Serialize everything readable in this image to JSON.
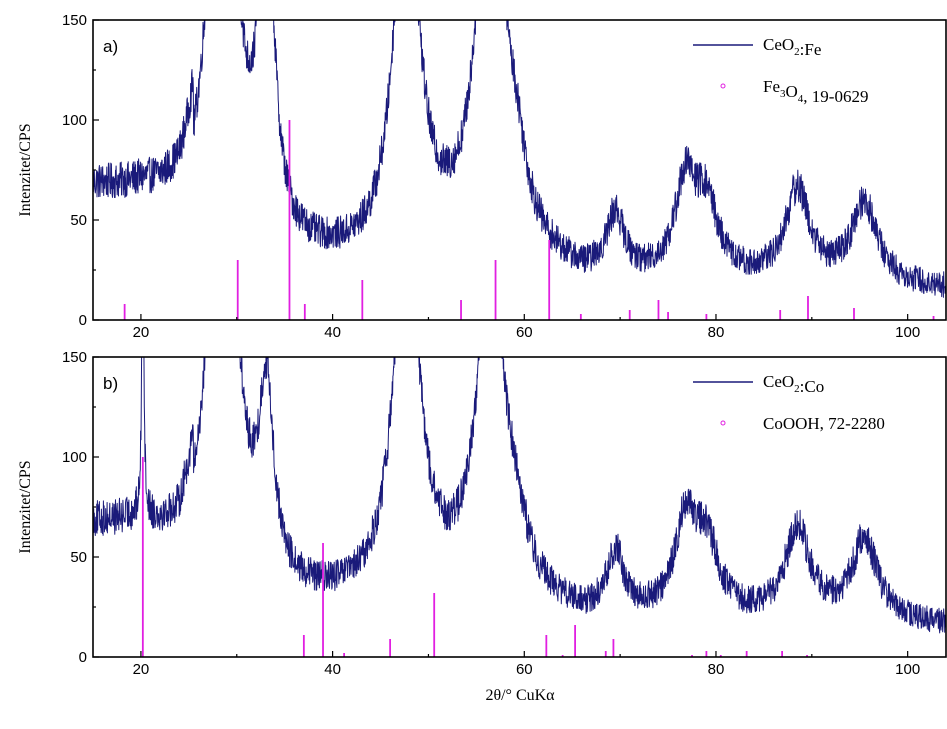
{
  "colors": {
    "pattern": "#1a1a7a",
    "reference": "#e11fe1",
    "axis": "#000000"
  },
  "x_axis_title": "2θ/° CuKα",
  "chart_data": [
    {
      "type": "line",
      "panel_label": "a)",
      "ylabel": "Intenzitet/CPS",
      "xlim": [
        15,
        104
      ],
      "ylim": [
        0,
        150
      ],
      "x_ticks": [
        20,
        40,
        60,
        80,
        100
      ],
      "y_ticks": [
        0,
        50,
        100,
        150
      ],
      "grid": false,
      "legend_position": "top-right",
      "series": [
        {
          "name": "CeO2:Fe",
          "legend": {
            "main": "CeO",
            "sub": "2",
            "rest": ":Fe"
          },
          "kind": "pattern",
          "baseline": [
            [
              15,
              65
            ],
            [
              20,
              62
            ],
            [
              24,
              55
            ],
            [
              25.5,
              65
            ]
          ],
          "peaks": [
            [
              28.5,
              300,
              1.4
            ],
            [
              33.1,
              170,
              0.9
            ],
            [
              47.7,
              200,
              1.5
            ],
            [
              56.5,
              220,
              1.6
            ],
            [
              59.2,
              25,
              1.2
            ],
            [
              69.5,
              30,
              1.1
            ],
            [
              76.8,
              45,
              1.3
            ],
            [
              79,
              35,
              1.5
            ],
            [
              88.5,
              45,
              1.5
            ],
            [
              95.5,
              40,
              1.6
            ]
          ],
          "background": [
            [
              25.5,
              40
            ],
            [
              36,
              28
            ],
            [
              44,
              25
            ],
            [
              52,
              30
            ],
            [
              60,
              28
            ],
            [
              66,
              18
            ],
            [
              70,
              18
            ],
            [
              74,
              18
            ],
            [
              84,
              18
            ],
            [
              92,
              18
            ],
            [
              104,
              15
            ]
          ],
          "noise": 9
        },
        {
          "name": "Fe3O4, 19-0629",
          "legend": {
            "main": "Fe",
            "sub": "3",
            "mid": "O",
            "sub2": "4",
            "rest": ", 19-0629"
          },
          "kind": "reference",
          "x": [
            18.3,
            30.1,
            35.5,
            37.1,
            43.1,
            53.4,
            57.0,
            62.6,
            65.9,
            71.0,
            74.0,
            75.0,
            79.0,
            86.7,
            89.6,
            94.4,
            102.7
          ],
          "y": [
            8,
            30,
            100,
            8,
            20,
            10,
            30,
            40,
            3,
            5,
            10,
            4,
            3,
            5,
            12,
            6,
            2
          ]
        }
      ]
    },
    {
      "type": "line",
      "panel_label": "b)",
      "ylabel": "Intenzitet/CPS",
      "xlim": [
        15,
        104
      ],
      "ylim": [
        0,
        150
      ],
      "x_ticks": [
        20,
        40,
        60,
        80,
        100
      ],
      "y_ticks": [
        0,
        50,
        100,
        150
      ],
      "grid": false,
      "legend_position": "top-right",
      "series": [
        {
          "name": "CeO2:Co",
          "legend": {
            "main": "CeO",
            "sub": "2",
            "rest": ":Co"
          },
          "kind": "pattern",
          "baseline": [
            [
              15,
              65
            ],
            [
              20,
              63
            ],
            [
              24,
              50
            ],
            [
              25.5,
              60
            ]
          ],
          "peaks": [
            [
              20.2,
              150,
              0.12
            ],
            [
              28.5,
              300,
              1.4
            ],
            [
              33.1,
              90,
              0.9
            ],
            [
              47.7,
              200,
              1.5
            ],
            [
              56.5,
              180,
              1.6
            ],
            [
              59.2,
              20,
              1.2
            ],
            [
              69.5,
              30,
              1.1
            ],
            [
              76.8,
              45,
              1.3
            ],
            [
              79,
              35,
              1.5
            ],
            [
              88.5,
              45,
              1.5
            ],
            [
              95.5,
              40,
              1.6
            ]
          ],
          "background": [
            [
              25.5,
              38
            ],
            [
              36,
              26
            ],
            [
              44,
              25
            ],
            [
              52,
              28
            ],
            [
              60,
              25
            ],
            [
              66,
              17
            ],
            [
              70,
              18
            ],
            [
              74,
              18
            ],
            [
              84,
              18
            ],
            [
              92,
              18
            ],
            [
              104,
              15
            ]
          ],
          "noise": 9
        },
        {
          "name": "CoOOH, 72-2280",
          "legend": {
            "main": "CoOOH, 72-2280"
          },
          "kind": "reference",
          "x": [
            20.2,
            37.0,
            39.0,
            41.2,
            46.0,
            50.6,
            62.3,
            64.0,
            65.3,
            68.5,
            69.3,
            77.5,
            79.0,
            80.5,
            83.2,
            86.9,
            89.5
          ],
          "y": [
            100,
            11,
            57,
            2,
            9,
            32,
            11,
            1,
            16,
            3,
            9,
            1,
            3,
            1,
            3,
            3,
            1
          ]
        }
      ]
    }
  ]
}
